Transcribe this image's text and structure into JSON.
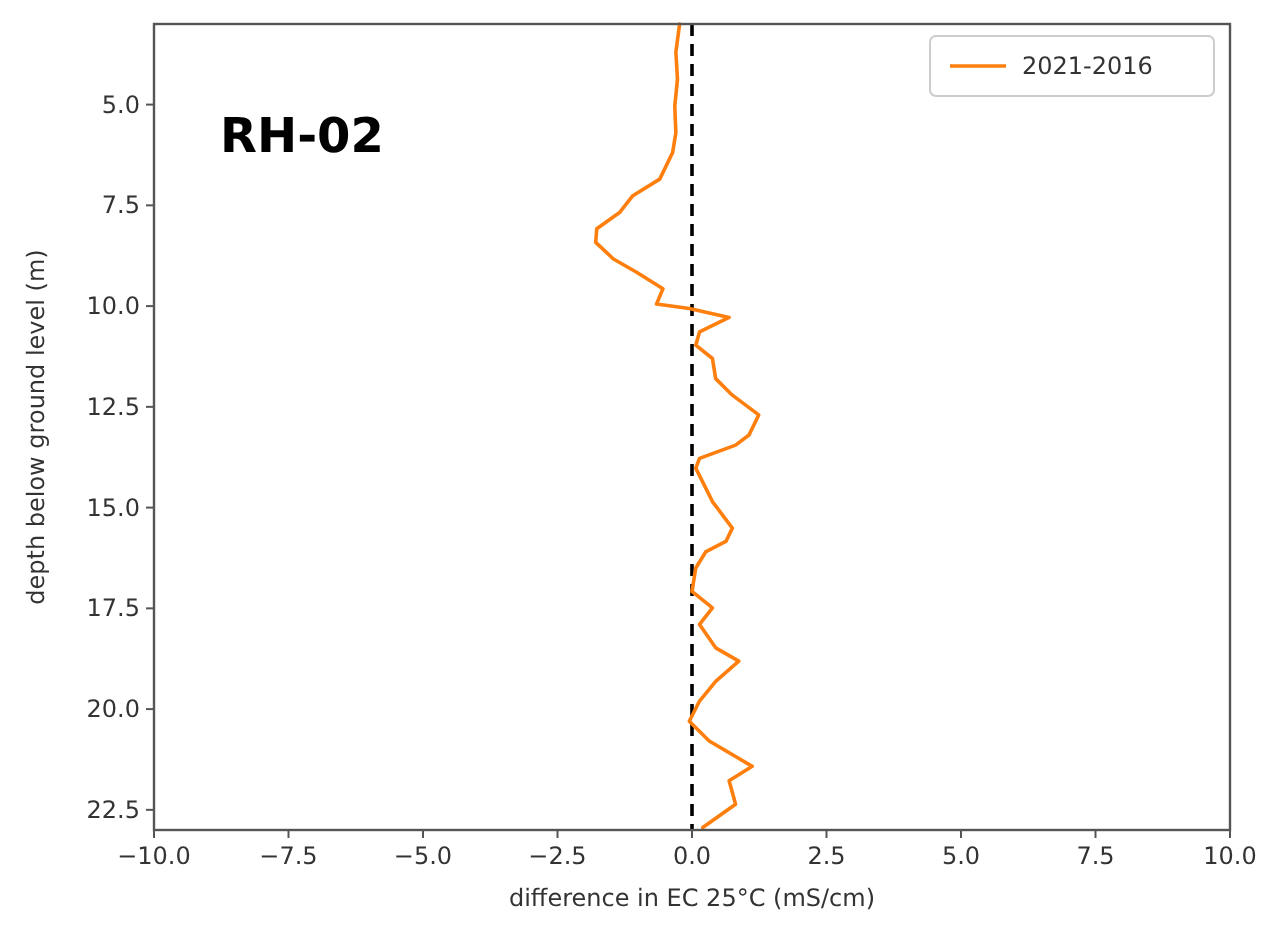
{
  "chart_data": {
    "type": "line",
    "xlabel": "difference in EC 25°C (mS/cm)",
    "ylabel": "depth below ground level (m)",
    "annotations": [
      "RH-02"
    ],
    "xlim": [
      -10,
      10
    ],
    "xticks": [
      {
        "value": -10,
        "label": "−10.0"
      },
      {
        "value": -7.5,
        "label": "−7.5"
      },
      {
        "value": -5,
        "label": "−5.0"
      },
      {
        "value": -2.5,
        "label": "−2.5"
      },
      {
        "value": 0,
        "label": "0.0"
      },
      {
        "value": 2.5,
        "label": "2.5"
      },
      {
        "value": 5,
        "label": "5.0"
      },
      {
        "value": 7.5,
        "label": "7.5"
      },
      {
        "value": 10,
        "label": "10.0"
      }
    ],
    "ylim": [
      23,
      3
    ],
    "yticks": [
      {
        "value": 5,
        "label": "5.0"
      },
      {
        "value": 7.5,
        "label": "7.5"
      },
      {
        "value": 10,
        "label": "10.0"
      },
      {
        "value": 12.5,
        "label": "12.5"
      },
      {
        "value": 15,
        "label": "15.0"
      },
      {
        "value": 17.5,
        "label": "17.5"
      },
      {
        "value": 20,
        "label": "20.0"
      },
      {
        "value": 22.5,
        "label": "22.5"
      }
    ],
    "grid": false,
    "legend": "top right",
    "line_style": "solid",
    "ref_lines": [
      {
        "axis": "x",
        "value": 0,
        "color": "#000000",
        "line_style": "dashed"
      }
    ],
    "series": [
      {
        "name": "2021-2016",
        "color": "#ff7f0e",
        "x": [
          -0.23,
          -0.3,
          -0.27,
          -0.32,
          -0.3,
          -0.36,
          -0.6,
          -1.1,
          -1.34,
          -1.77,
          -1.79,
          -1.46,
          -1.03,
          -0.54,
          -0.66,
          -0.05,
          0.69,
          0.14,
          0.07,
          0.38,
          0.44,
          0.75,
          1.24,
          1.06,
          0.81,
          0.14,
          0.07,
          0.38,
          0.75,
          0.63,
          0.26,
          0.07,
          0,
          0.38,
          0.14,
          0.44,
          0.87,
          0.44,
          0.14,
          -0.05,
          0.32,
          1.12,
          0.69,
          0.81,
          0.2
        ],
        "values": [
          3,
          3.7,
          4.37,
          5.03,
          5.7,
          6.19,
          6.85,
          7.26,
          7.67,
          8.08,
          8.42,
          8.83,
          9.16,
          9.57,
          9.95,
          10.06,
          10.28,
          10.64,
          10.97,
          11.3,
          11.8,
          12.21,
          12.7,
          13.2,
          13.45,
          13.78,
          14.02,
          14.85,
          15.51,
          15.84,
          16.09,
          16.5,
          17.08,
          17.49,
          17.9,
          18.48,
          18.81,
          19.31,
          19.8,
          20.3,
          20.79,
          21.42,
          21.78,
          22.36,
          22.94
        ]
      }
    ]
  }
}
